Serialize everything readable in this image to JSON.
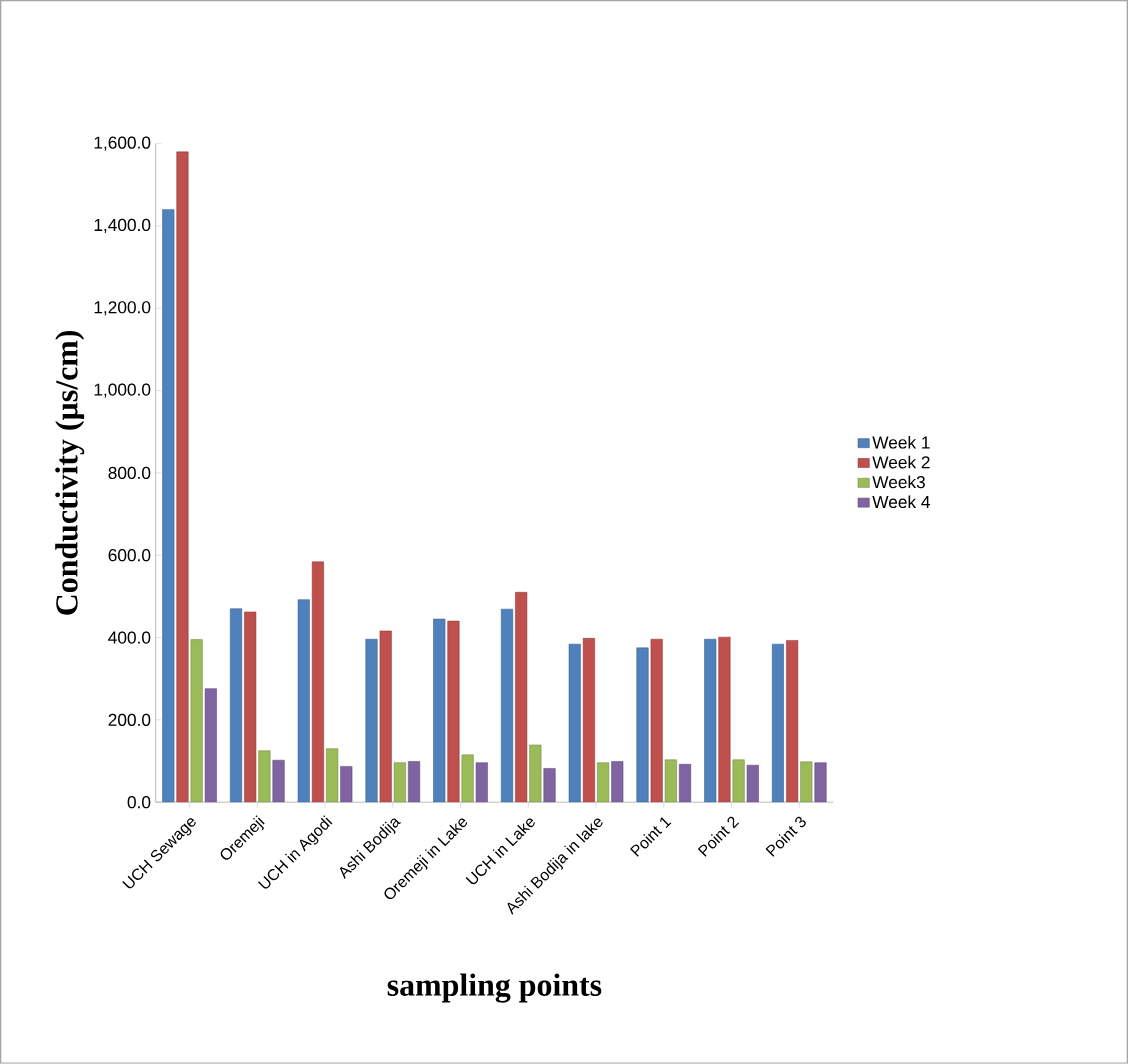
{
  "chart_data": {
    "type": "bar",
    "xlabel": "sampling points",
    "ylabel": "Conductivity (µs/cm)",
    "categories": [
      "UCH Sewage",
      "Oremeji",
      "UCH in Agodi",
      "Ashi Bodija",
      "Oremeji in Lake",
      "UCH in Lake",
      "Ashi Bodija in lake",
      "Point 1",
      "Point 2",
      "Point 3"
    ],
    "series": [
      {
        "name": "Week 1",
        "color": "#4f81bd",
        "values": [
          1440,
          470,
          492,
          396,
          445,
          469,
          384,
          375,
          396,
          384
        ]
      },
      {
        "name": "Week 2",
        "color": "#c0504d",
        "values": [
          1580,
          462,
          584,
          416,
          440,
          510,
          398,
          396,
          401,
          393
        ]
      },
      {
        "name": "Week3",
        "color": "#9bbb59",
        "values": [
          395,
          125,
          130,
          96,
          115,
          139,
          96,
          103,
          103,
          98
        ]
      },
      {
        "name": "Week 4",
        "color": "#8064a2",
        "values": [
          276,
          102,
          87,
          99,
          96,
          82,
          99,
          92,
          90,
          96
        ]
      }
    ],
    "ylim": [
      0,
      1600
    ],
    "yticks": [
      {
        "value": 0,
        "label": "0.0"
      },
      {
        "value": 200,
        "label": "200.0"
      },
      {
        "value": 400,
        "label": "400.0"
      },
      {
        "value": 600,
        "label": "600.0"
      },
      {
        "value": 800,
        "label": "800.0"
      },
      {
        "value": 1000,
        "label": "1,000.0"
      },
      {
        "value": 1200,
        "label": "1,200.0"
      },
      {
        "value": 1400,
        "label": "1,400.0"
      },
      {
        "value": 1600,
        "label": "1,600.0"
      }
    ],
    "grid": false,
    "legend": "right"
  }
}
